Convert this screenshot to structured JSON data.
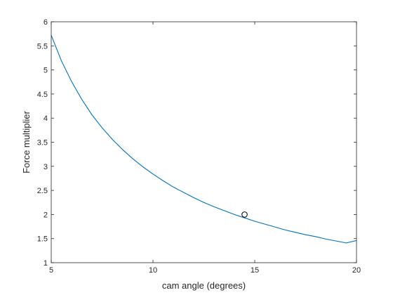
{
  "chart_data": {
    "type": "line",
    "title": "",
    "xlabel": "cam angle (degrees)",
    "ylabel": "Force multiplier",
    "xlim": [
      5,
      20
    ],
    "ylim": [
      1,
      6
    ],
    "xticks": [
      5,
      10,
      15,
      20
    ],
    "yticks": [
      1,
      1.5,
      2,
      2.5,
      3,
      3.5,
      4,
      4.5,
      5,
      5.5,
      6
    ],
    "grid": false,
    "series": [
      {
        "color": "#0072BD",
        "x": [
          5,
          5.5,
          6,
          6.5,
          7,
          7.5,
          8,
          8.5,
          9,
          9.5,
          10,
          10.5,
          11,
          11.5,
          12,
          12.5,
          13,
          13.5,
          14,
          14.5,
          15,
          15.5,
          16,
          16.5,
          17,
          17.5,
          18,
          18.5,
          19,
          19.5,
          20
        ],
        "y": [
          5.72,
          5.19,
          4.76,
          4.39,
          4.07,
          3.8,
          3.56,
          3.35,
          3.16,
          2.99,
          2.84,
          2.7,
          2.57,
          2.46,
          2.35,
          2.25,
          2.16,
          2.08,
          2.0,
          1.93,
          1.86,
          1.8,
          1.74,
          1.68,
          1.63,
          1.58,
          1.54,
          1.49,
          1.45,
          1.41,
          1.46
        ]
      }
    ],
    "marker": {
      "x": 14.5,
      "y": 2.0,
      "shape": "circle",
      "color": "#000000"
    }
  }
}
